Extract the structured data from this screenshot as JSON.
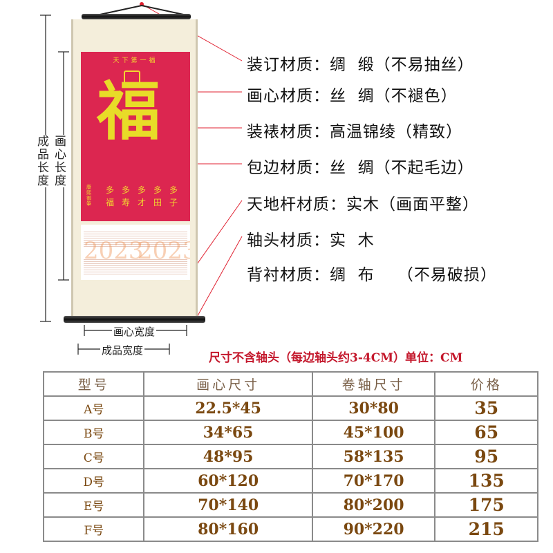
{
  "scroll": {
    "panel_title": "天下第一福",
    "main_character": "福",
    "blessings": [
      [
        "多",
        "福"
      ],
      [
        "多",
        "寿"
      ],
      [
        "多",
        "才"
      ],
      [
        "多",
        "田"
      ],
      [
        "多",
        "子"
      ]
    ],
    "signature": "康熙御筆",
    "calendar_year": "2023"
  },
  "specs": [
    "装订材质：绸  缎（不易抽丝）",
    "画心材质：丝  绸（不褪色）",
    "装裱材质：高温锦绫（精致）",
    "包边材质：丝  绸（不起毛边）",
    "天地杆材质：实木（画面平整）",
    "轴头材质：实  木",
    "背衬材质：绸  布    （不易破损）"
  ],
  "dimensions": {
    "product_length": "成品长度",
    "painting_length": "画心长度",
    "painting_width": "画心宽度",
    "product_width": "成品宽度"
  },
  "note": "尺寸不含轴头（每边轴头约3-4CM）单位：CM",
  "table": {
    "headers": [
      "型号",
      "画心尺寸",
      "卷轴尺寸",
      "价格"
    ],
    "rows": [
      [
        "A号",
        "22.5*45",
        "30*80",
        "35"
      ],
      [
        "B号",
        "34*65",
        "45*100",
        "65"
      ],
      [
        "C号",
        "48*95",
        "58*135",
        "95"
      ],
      [
        "D号",
        "60*120",
        "70*170",
        "135"
      ],
      [
        "E号",
        "70*140",
        "80*200",
        "175"
      ],
      [
        "F号",
        "80*160",
        "90*220",
        "215"
      ]
    ]
  },
  "colors": {
    "panel_red": "#dc2650",
    "gold": "#e8dc28",
    "note_red": "#c4182c",
    "table_text": "#7a4810"
  }
}
